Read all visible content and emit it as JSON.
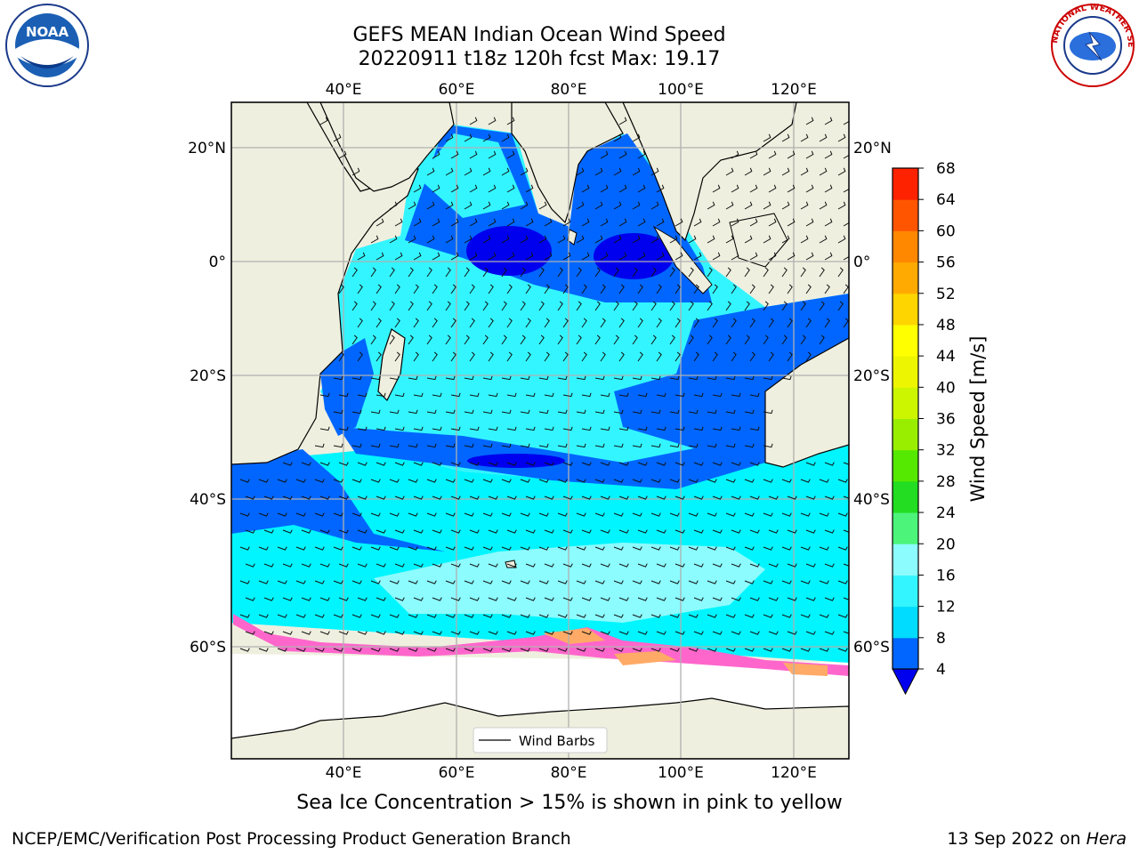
{
  "title_line1": "GEFS MEAN Indian Ocean Wind Speed",
  "title_line2": "20220911 t18z 120h fcst   Max: 19.17",
  "caption": "Sea Ice Concentration > 15% is shown in pink to yellow",
  "footer_left": "NCEP/EMC/Verification Post Processing Product Generation Branch",
  "footer_date": "13 Sep 2022 on",
  "footer_machine": "Hera",
  "legend_label": "Wind Barbs",
  "colorbar": {
    "label": "Wind Speed [m/s]",
    "ticks": [
      "4",
      "8",
      "12",
      "16",
      "20",
      "24",
      "28",
      "32",
      "36",
      "40",
      "44",
      "48",
      "52",
      "56",
      "60",
      "64",
      "68"
    ],
    "colors": [
      "#0066ff",
      "#00dcff",
      "#33f5ff",
      "#8cfcff",
      "#4cf57a",
      "#22dd22",
      "#55e800",
      "#99ee00",
      "#ccf500",
      "#eef500",
      "#ffff00",
      "#ffd500",
      "#ffaa00",
      "#ff8800",
      "#ff5500",
      "#ff2200"
    ],
    "extend_color": "#0000ee"
  },
  "axes": {
    "lon_ticks": [
      "40°E",
      "60°E",
      "80°E",
      "100°E",
      "120°E"
    ],
    "lat_ticks": [
      "20°N",
      "0°",
      "20°S",
      "40°S",
      "60°S"
    ]
  },
  "colors": {
    "land": "#efefdf",
    "ocean_base": "#00f5ff",
    "dark_blue": "#0000ee",
    "mid_blue": "#0066ff",
    "light_cyan": "#8cfcff",
    "ice_pink": "#ff66cc",
    "ice_orange": "#ffaa66"
  },
  "logos": {
    "noaa_text": "NOAA",
    "nws_text": "NATIONAL WEATHER SERVICE"
  }
}
